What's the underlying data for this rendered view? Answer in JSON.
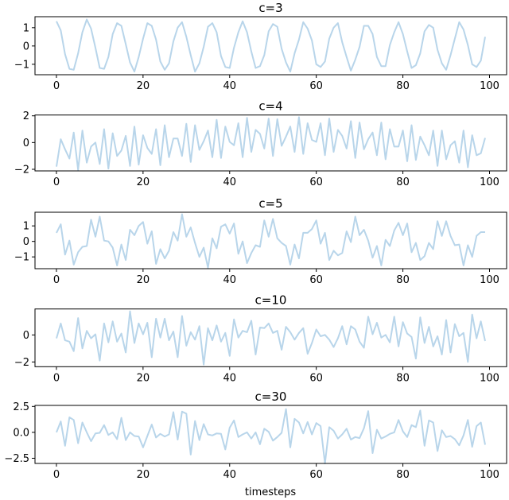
{
  "chart_data": {
    "type": "line",
    "xlabel": "timesteps",
    "xlim": [
      -4.95,
      103.95
    ],
    "xticks": [
      0,
      20,
      40,
      60,
      80,
      100
    ],
    "line_color": "#b8d5ea",
    "grid": false,
    "subplots": [
      {
        "title": "c=3",
        "ylim": [
          -1.57,
          1.6
        ],
        "yticks": [
          1,
          0,
          -1
        ],
        "yticklabels": [
          "1",
          "0",
          "−1"
        ],
        "values": [
          1.35,
          0.85,
          -0.45,
          -1.25,
          -1.3,
          -0.4,
          0.75,
          1.45,
          0.95,
          -0.1,
          -1.2,
          -1.25,
          -0.6,
          0.65,
          1.25,
          1.1,
          0.1,
          -0.9,
          -1.4,
          -0.6,
          0.4,
          1.25,
          1.1,
          0.35,
          -0.85,
          -1.3,
          -0.95,
          0.25,
          1.0,
          1.3,
          0.5,
          -0.5,
          -1.4,
          -0.95,
          -0.05,
          1.05,
          1.25,
          0.75,
          -0.55,
          -1.15,
          -1.2,
          -0.1,
          0.75,
          1.35,
          0.75,
          -0.3,
          -1.2,
          -1.1,
          -0.5,
          0.8,
          1.2,
          1.05,
          -0.15,
          -0.9,
          -1.4,
          -0.4,
          0.35,
          1.3,
          0.95,
          0.3,
          -1.0,
          -1.15,
          -0.85,
          0.4,
          1.0,
          1.25,
          0.2,
          -0.6,
          -1.35,
          -0.75,
          -0.05,
          1.1,
          1.1,
          0.65,
          -0.6,
          -1.1,
          -1.1,
          0.05,
          0.75,
          1.3,
          0.65,
          -0.3,
          -1.2,
          -1.05,
          -0.4,
          0.8,
          1.15,
          1.0,
          -0.2,
          -0.95,
          -1.3,
          -0.5,
          0.4,
          1.3,
          0.9,
          0.05,
          -1.0,
          -1.15,
          -0.8,
          0.5
        ]
      },
      {
        "title": "c=4",
        "ylim": [
          -2.12,
          2.06
        ],
        "yticks": [
          2,
          0,
          -2
        ],
        "yticklabels": [
          "2",
          "0",
          "−2"
        ],
        "values": [
          -1.8,
          0.25,
          -0.5,
          -1.2,
          0.75,
          -2.05,
          0.9,
          -1.5,
          -0.3,
          0.0,
          -1.6,
          1.0,
          -1.95,
          0.7,
          -1.0,
          -0.6,
          0.5,
          -1.75,
          1.2,
          -1.65,
          0.55,
          -0.4,
          -0.85,
          1.0,
          -1.7,
          1.3,
          -1.1,
          0.3,
          0.3,
          -1.0,
          1.4,
          -1.45,
          1.3,
          -0.55,
          0.1,
          0.9,
          -1.1,
          1.7,
          -1.15,
          1.2,
          0.05,
          -0.2,
          1.45,
          -1.1,
          1.85,
          -0.7,
          0.95,
          0.65,
          -0.45,
          1.8,
          -1.0,
          1.75,
          -0.25,
          0.45,
          1.2,
          -0.7,
          1.9,
          -0.85,
          1.45,
          0.2,
          0.05,
          1.45,
          -0.95,
          1.8,
          -0.7,
          0.95,
          0.5,
          -0.45,
          1.6,
          -1.15,
          1.5,
          -0.5,
          0.25,
          0.75,
          -0.95,
          1.5,
          -1.25,
          1.0,
          -0.3,
          -0.3,
          0.9,
          -1.4,
          1.3,
          -1.3,
          0.45,
          -0.2,
          -0.95,
          0.9,
          -1.75,
          0.9,
          -1.25,
          -0.2,
          0.1,
          -1.5,
          0.9,
          -1.85,
          0.55,
          -0.95,
          -0.8,
          0.35
        ]
      },
      {
        "title": "c=5",
        "ylim": [
          -1.76,
          1.88
        ],
        "yticks": [
          1,
          0,
          -1
        ],
        "yticklabels": [
          "1",
          "0",
          "−1"
        ],
        "values": [
          0.55,
          1.1,
          -0.85,
          0.05,
          -1.5,
          -0.7,
          -0.35,
          -0.3,
          1.4,
          0.3,
          1.6,
          0.05,
          0.0,
          -0.4,
          -1.55,
          -0.2,
          -1.2,
          0.75,
          0.4,
          1.0,
          1.25,
          -0.15,
          0.65,
          -1.45,
          -0.5,
          -1.1,
          -0.6,
          0.6,
          0.05,
          1.75,
          0.3,
          0.9,
          -0.1,
          -1.0,
          -0.4,
          -1.7,
          0.2,
          -0.45,
          0.95,
          1.1,
          0.5,
          1.15,
          -0.8,
          0.0,
          -1.4,
          -0.75,
          -0.25,
          -0.35,
          1.35,
          0.3,
          1.45,
          0.2,
          -0.1,
          -0.3,
          -1.5,
          -0.2,
          -1.1,
          0.55,
          0.55,
          0.8,
          1.35,
          -0.15,
          0.55,
          -1.2,
          -0.6,
          -0.9,
          -0.75,
          0.65,
          -0.05,
          1.6,
          0.4,
          0.75,
          0.05,
          -1.05,
          -0.3,
          -1.55,
          0.1,
          -0.3,
          0.7,
          1.2,
          0.4,
          1.15,
          -0.7,
          -0.1,
          -1.2,
          -0.95,
          -0.1,
          -0.5,
          1.3,
          0.35,
          1.3,
          0.35,
          -0.25,
          -0.2,
          -1.55,
          -0.25,
          -1.0,
          0.35,
          0.6,
          0.6
        ]
      },
      {
        "title": "c=10",
        "ylim": [
          -2.35,
          1.92
        ],
        "yticks": [
          0,
          -2
        ],
        "yticklabels": [
          "0",
          "−2"
        ],
        "values": [
          -0.25,
          0.85,
          -0.4,
          -0.5,
          -1.2,
          1.25,
          -1.0,
          0.3,
          -0.25,
          0.05,
          -1.9,
          0.85,
          -0.55,
          1.0,
          -0.5,
          0.1,
          -1.3,
          1.75,
          -0.6,
          0.85,
          0.05,
          0.9,
          -1.65,
          1.2,
          -0.2,
          1.2,
          -0.4,
          0.25,
          -1.65,
          1.4,
          -0.8,
          0.2,
          -0.35,
          0.65,
          -2.2,
          0.5,
          -0.4,
          0.7,
          -0.5,
          0.15,
          -1.55,
          1.15,
          -0.2,
          0.3,
          0.2,
          1.05,
          -1.45,
          0.55,
          0.5,
          0.85,
          0.15,
          0.3,
          -1.1,
          0.6,
          0.2,
          -0.35,
          0.15,
          0.5,
          -1.4,
          -0.6,
          0.4,
          -0.1,
          0.0,
          -0.35,
          -0.9,
          -0.25,
          0.65,
          -0.7,
          0.65,
          0.4,
          -0.5,
          -0.95,
          1.35,
          0.05,
          0.9,
          -0.2,
          0.0,
          -0.55,
          1.35,
          -0.85,
          0.95,
          0.1,
          -0.15,
          -1.75,
          1.3,
          -0.6,
          0.6,
          -0.85,
          -0.1,
          -1.45,
          1.1,
          -1.3,
          0.8,
          -0.1,
          0.15,
          -2.0,
          1.5,
          -0.25,
          1.0,
          -0.45
        ]
      },
      {
        "title": "c=30",
        "ylim": [
          -3.0,
          2.6
        ],
        "yticks": [
          2.5,
          0.0,
          -2.5
        ],
        "yticklabels": [
          "2.5",
          "0.0",
          "−2.5"
        ],
        "values": [
          0.0,
          1.05,
          -1.3,
          1.45,
          1.2,
          -1.05,
          0.95,
          0.0,
          -0.85,
          -0.1,
          -0.05,
          0.7,
          -0.25,
          0.0,
          -0.65,
          1.4,
          -0.75,
          0.0,
          -0.35,
          -0.4,
          -1.45,
          -0.35,
          0.75,
          -0.5,
          -0.15,
          -0.4,
          -0.2,
          1.95,
          -0.7,
          2.0,
          1.8,
          -2.15,
          1.1,
          -0.75,
          0.8,
          -0.2,
          -0.3,
          -0.1,
          -0.15,
          -1.65,
          0.45,
          1.15,
          -0.45,
          -0.2,
          0.0,
          -0.6,
          0.0,
          -1.15,
          0.35,
          0.05,
          -0.8,
          -0.45,
          -0.05,
          2.25,
          -1.45,
          1.3,
          0.95,
          -0.1,
          1.0,
          -0.2,
          0.9,
          0.6,
          -3.0,
          0.5,
          0.15,
          -0.6,
          -0.2,
          0.35,
          -0.7,
          -0.45,
          -0.55,
          0.4,
          2.05,
          -2.0,
          0.25,
          -0.6,
          -0.4,
          -0.15,
          0.0,
          1.2,
          0.1,
          -0.45,
          0.7,
          0.5,
          2.1,
          -1.3,
          1.15,
          0.95,
          -1.8,
          0.2,
          -0.45,
          -0.35,
          -0.65,
          -1.25,
          -0.3,
          1.2,
          -1.4,
          0.6,
          0.95,
          -1.2
        ]
      }
    ]
  }
}
